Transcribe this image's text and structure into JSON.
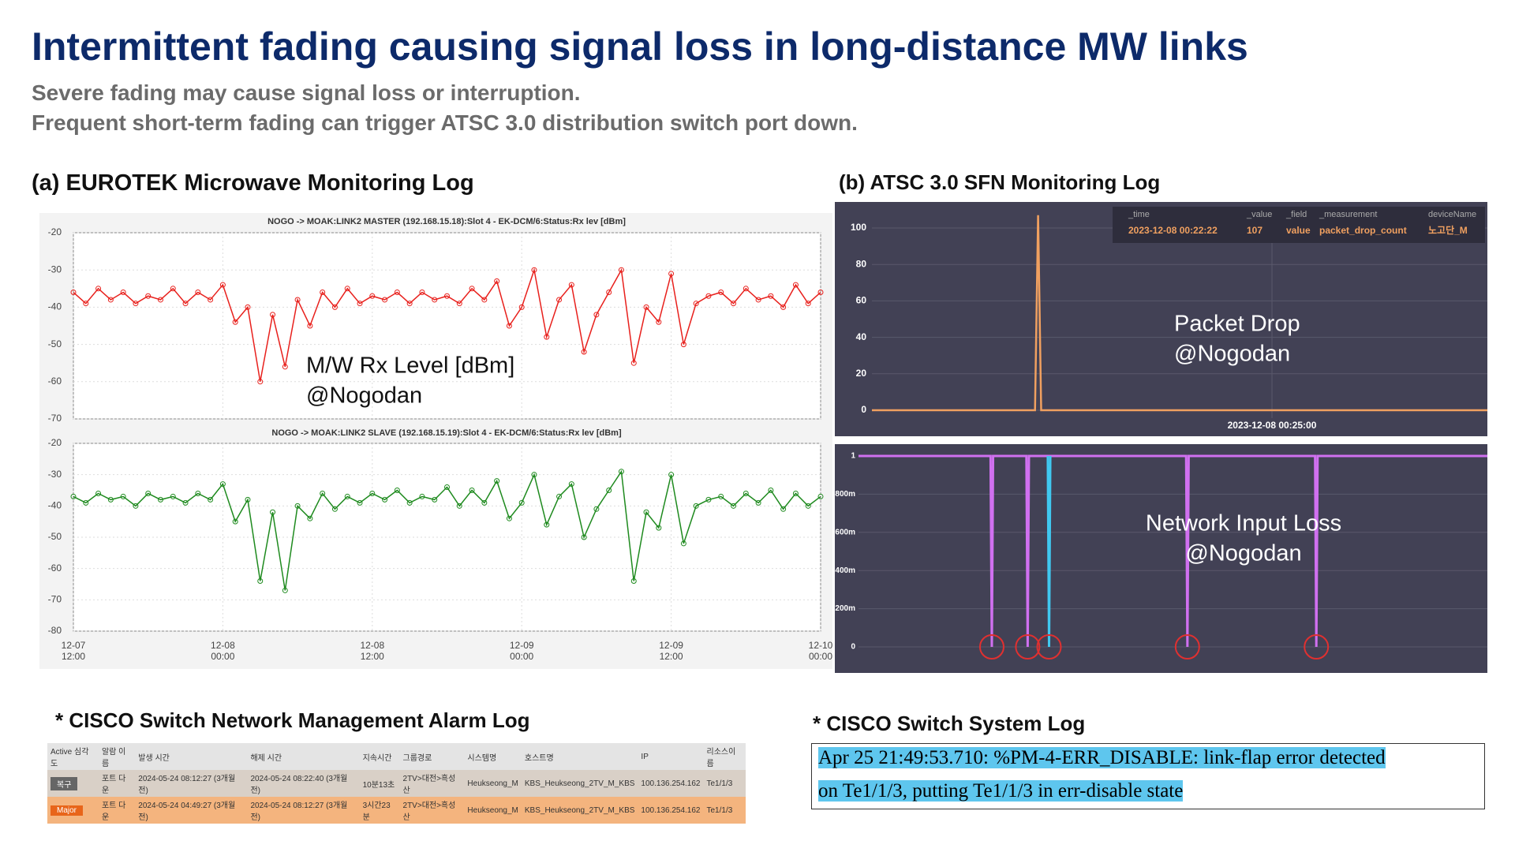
{
  "header": {
    "title": "Intermittent fading causing signal loss in long-distance MW links",
    "subtitle_lines": [
      "Severe fading may cause signal loss or interruption.",
      "Frequent short-term fading can trigger ATSC 3.0 distribution switch port down."
    ]
  },
  "panel_a": {
    "label": "(a) EUROTEK Microwave Monitoring Log",
    "annotation_lines": [
      "M/W Rx Level [dBm]",
      "@Nogodan"
    ],
    "xlim": [
      0,
      60
    ],
    "xticks": [
      {
        "value": 0,
        "date": "12-07",
        "time": "12:00"
      },
      {
        "value": 12,
        "date": "12-08",
        "time": "00:00"
      },
      {
        "value": 24,
        "date": "12-08",
        "time": "12:00"
      },
      {
        "value": 36,
        "date": "12-09",
        "time": "00:00"
      },
      {
        "value": 48,
        "date": "12-09",
        "time": "12:00"
      },
      {
        "value": 60,
        "date": "12-10",
        "time": "00:00"
      }
    ],
    "charts": [
      {
        "title": "NOGO -> MOAK:LINK2 MASTER (192.168.15.18):Slot 4 - EK-DCM/6:Status:Rx lev [dBm]",
        "color": "#e8201c",
        "ylim": [
          -70,
          -20
        ],
        "yticks": [
          -20,
          -30,
          -40,
          -50,
          -60,
          -70
        ],
        "x": [
          0,
          1,
          2,
          3,
          4,
          5,
          6,
          7,
          8,
          9,
          10,
          11,
          12,
          13,
          14,
          15,
          16,
          17,
          18,
          19,
          20,
          21,
          22,
          23,
          24,
          25,
          26,
          27,
          28,
          29,
          30,
          31,
          32,
          33,
          34,
          35,
          36,
          37,
          38,
          39,
          40,
          41,
          42,
          43,
          44,
          45,
          46,
          47,
          48,
          49,
          50,
          51,
          52,
          53,
          54,
          55,
          56,
          57,
          58,
          59,
          60
        ],
        "values": [
          -36,
          -39,
          -35,
          -38,
          -36,
          -39,
          -37,
          -38,
          -35,
          -39,
          -36,
          -38,
          -34,
          -44,
          -40,
          -60,
          -42,
          -56,
          -38,
          -45,
          -36,
          -40,
          -35,
          -39,
          -37,
          -38,
          -36,
          -39,
          -36,
          -38,
          -37,
          -39,
          -35,
          -38,
          -33,
          -45,
          -40,
          -30,
          -48,
          -38,
          -34,
          -52,
          -42,
          -36,
          -30,
          -55,
          -40,
          -44,
          -31,
          -50,
          -39,
          -37,
          -36,
          -39,
          -35,
          -38,
          -37,
          -40,
          -34,
          -39,
          -36
        ]
      },
      {
        "title": "NOGO -> MOAK:LINK2 SLAVE (192.168.15.19):Slot 4 - EK-DCM/6:Status:Rx lev [dBm]",
        "color": "#1e8a1e",
        "ylim": [
          -80,
          -20
        ],
        "yticks": [
          -20,
          -30,
          -40,
          -50,
          -60,
          -70,
          -80
        ],
        "x": [
          0,
          1,
          2,
          3,
          4,
          5,
          6,
          7,
          8,
          9,
          10,
          11,
          12,
          13,
          14,
          15,
          16,
          17,
          18,
          19,
          20,
          21,
          22,
          23,
          24,
          25,
          26,
          27,
          28,
          29,
          30,
          31,
          32,
          33,
          34,
          35,
          36,
          37,
          38,
          39,
          40,
          41,
          42,
          43,
          44,
          45,
          46,
          47,
          48,
          49,
          50,
          51,
          52,
          53,
          54,
          55,
          56,
          57,
          58,
          59,
          60
        ],
        "values": [
          -37,
          -39,
          -36,
          -38,
          -37,
          -40,
          -36,
          -38,
          -37,
          -39,
          -36,
          -38,
          -33,
          -45,
          -38,
          -64,
          -42,
          -67,
          -40,
          -44,
          -36,
          -41,
          -37,
          -39,
          -36,
          -38,
          -35,
          -39,
          -37,
          -38,
          -34,
          -40,
          -35,
          -39,
          -32,
          -44,
          -39,
          -30,
          -46,
          -37,
          -33,
          -50,
          -41,
          -35,
          -29,
          -64,
          -42,
          -47,
          -30,
          -52,
          -40,
          -38,
          -37,
          -40,
          -36,
          -39,
          -35,
          -41,
          -36,
          -40,
          -37
        ]
      }
    ]
  },
  "panel_b": {
    "label": "(b) ATSC 3.0 SFN Monitoring Log",
    "packet_drop": {
      "annotation_lines": [
        "Packet Drop",
        "@Nogodan"
      ],
      "color": "#f0a060",
      "xlim": [
        0,
        40
      ],
      "ylim": [
        0,
        110
      ],
      "yticks": [
        0,
        20,
        40,
        60,
        80,
        100
      ],
      "xticks": [
        {
          "value": 26,
          "label": "2023-12-08 00:25:00"
        }
      ],
      "x": [
        0,
        10.6,
        10.8,
        11,
        40
      ],
      "values": [
        0,
        0,
        107,
        0,
        0
      ],
      "tooltip": {
        "headers": [
          "_time",
          "_value",
          "_field",
          "_measurement",
          "deviceName"
        ],
        "row": [
          "2023-12-08 00:22:22",
          107,
          "value",
          "packet_drop_count",
          "노고단_M"
        ]
      }
    },
    "network_loss": {
      "annotation_lines": [
        "Network Input Loss",
        "@Nogodan"
      ],
      "xlim": [
        0,
        100
      ],
      "ylim": [
        0,
        1
      ],
      "yticks": [
        {
          "value": 1,
          "label": "1"
        },
        {
          "value": 0.8,
          "label": "800m"
        },
        {
          "value": 0.6,
          "label": "600m"
        },
        {
          "value": 0.4,
          "label": "400m"
        },
        {
          "value": 0.2,
          "label": "200m"
        },
        {
          "value": 0,
          "label": "0"
        }
      ],
      "series": [
        {
          "color": "#d070f0",
          "x": [
            0,
            21,
            21.2,
            21.4,
            26.7,
            26.9,
            27.1,
            52.1,
            52.3,
            52.5,
            72.6,
            72.8,
            73,
            100
          ],
          "values": [
            1,
            1,
            0,
            1,
            1,
            0,
            1,
            1,
            0,
            1,
            1,
            0,
            1,
            1
          ]
        },
        {
          "color": "#40c8f0",
          "x": [
            30.1,
            30.3,
            30.5
          ],
          "values": [
            1,
            0,
            1
          ]
        }
      ]
    }
  },
  "alarm_log": {
    "label": "* CISCO Switch Network Management Alarm Log",
    "headers": [
      "Active 심각도",
      "알람 이름",
      "발생 시간",
      "해제 시간",
      "지속시간",
      "그룹경로",
      "시스템명",
      "호스트명",
      "IP",
      "리소스이름"
    ],
    "rows": [
      [
        "복구",
        "포트 다운",
        "2024-05-24 08:12:27 (3개월 전)",
        "2024-05-24 08:22:40 (3개월 전)",
        "10분13초",
        "2TV>대전>흑성산",
        "Heukseong_M",
        "KBS_Heukseong_2TV_M_KBS",
        "100.136.254.162",
        "Te1/1/3"
      ],
      [
        "Major",
        "포트 다운",
        "2024-05-24 04:49:27 (3개월 전)",
        "2024-05-24 08:12:27 (3개월 전)",
        "3시간23분",
        "2TV>대전>흑성산",
        "Heukseong_M",
        "KBS_Heukseong_2TV_M_KBS",
        "100.136.254.162",
        "Te1/1/3"
      ]
    ]
  },
  "system_log": {
    "label": "* CISCO Switch System Log",
    "lines": [
      "Apr 25 21:49:53.710: %PM-4-ERR_DISABLE: link-flap error detected",
      "on Te1/1/3, putting Te1/1/3 in err-disable state"
    ]
  }
}
